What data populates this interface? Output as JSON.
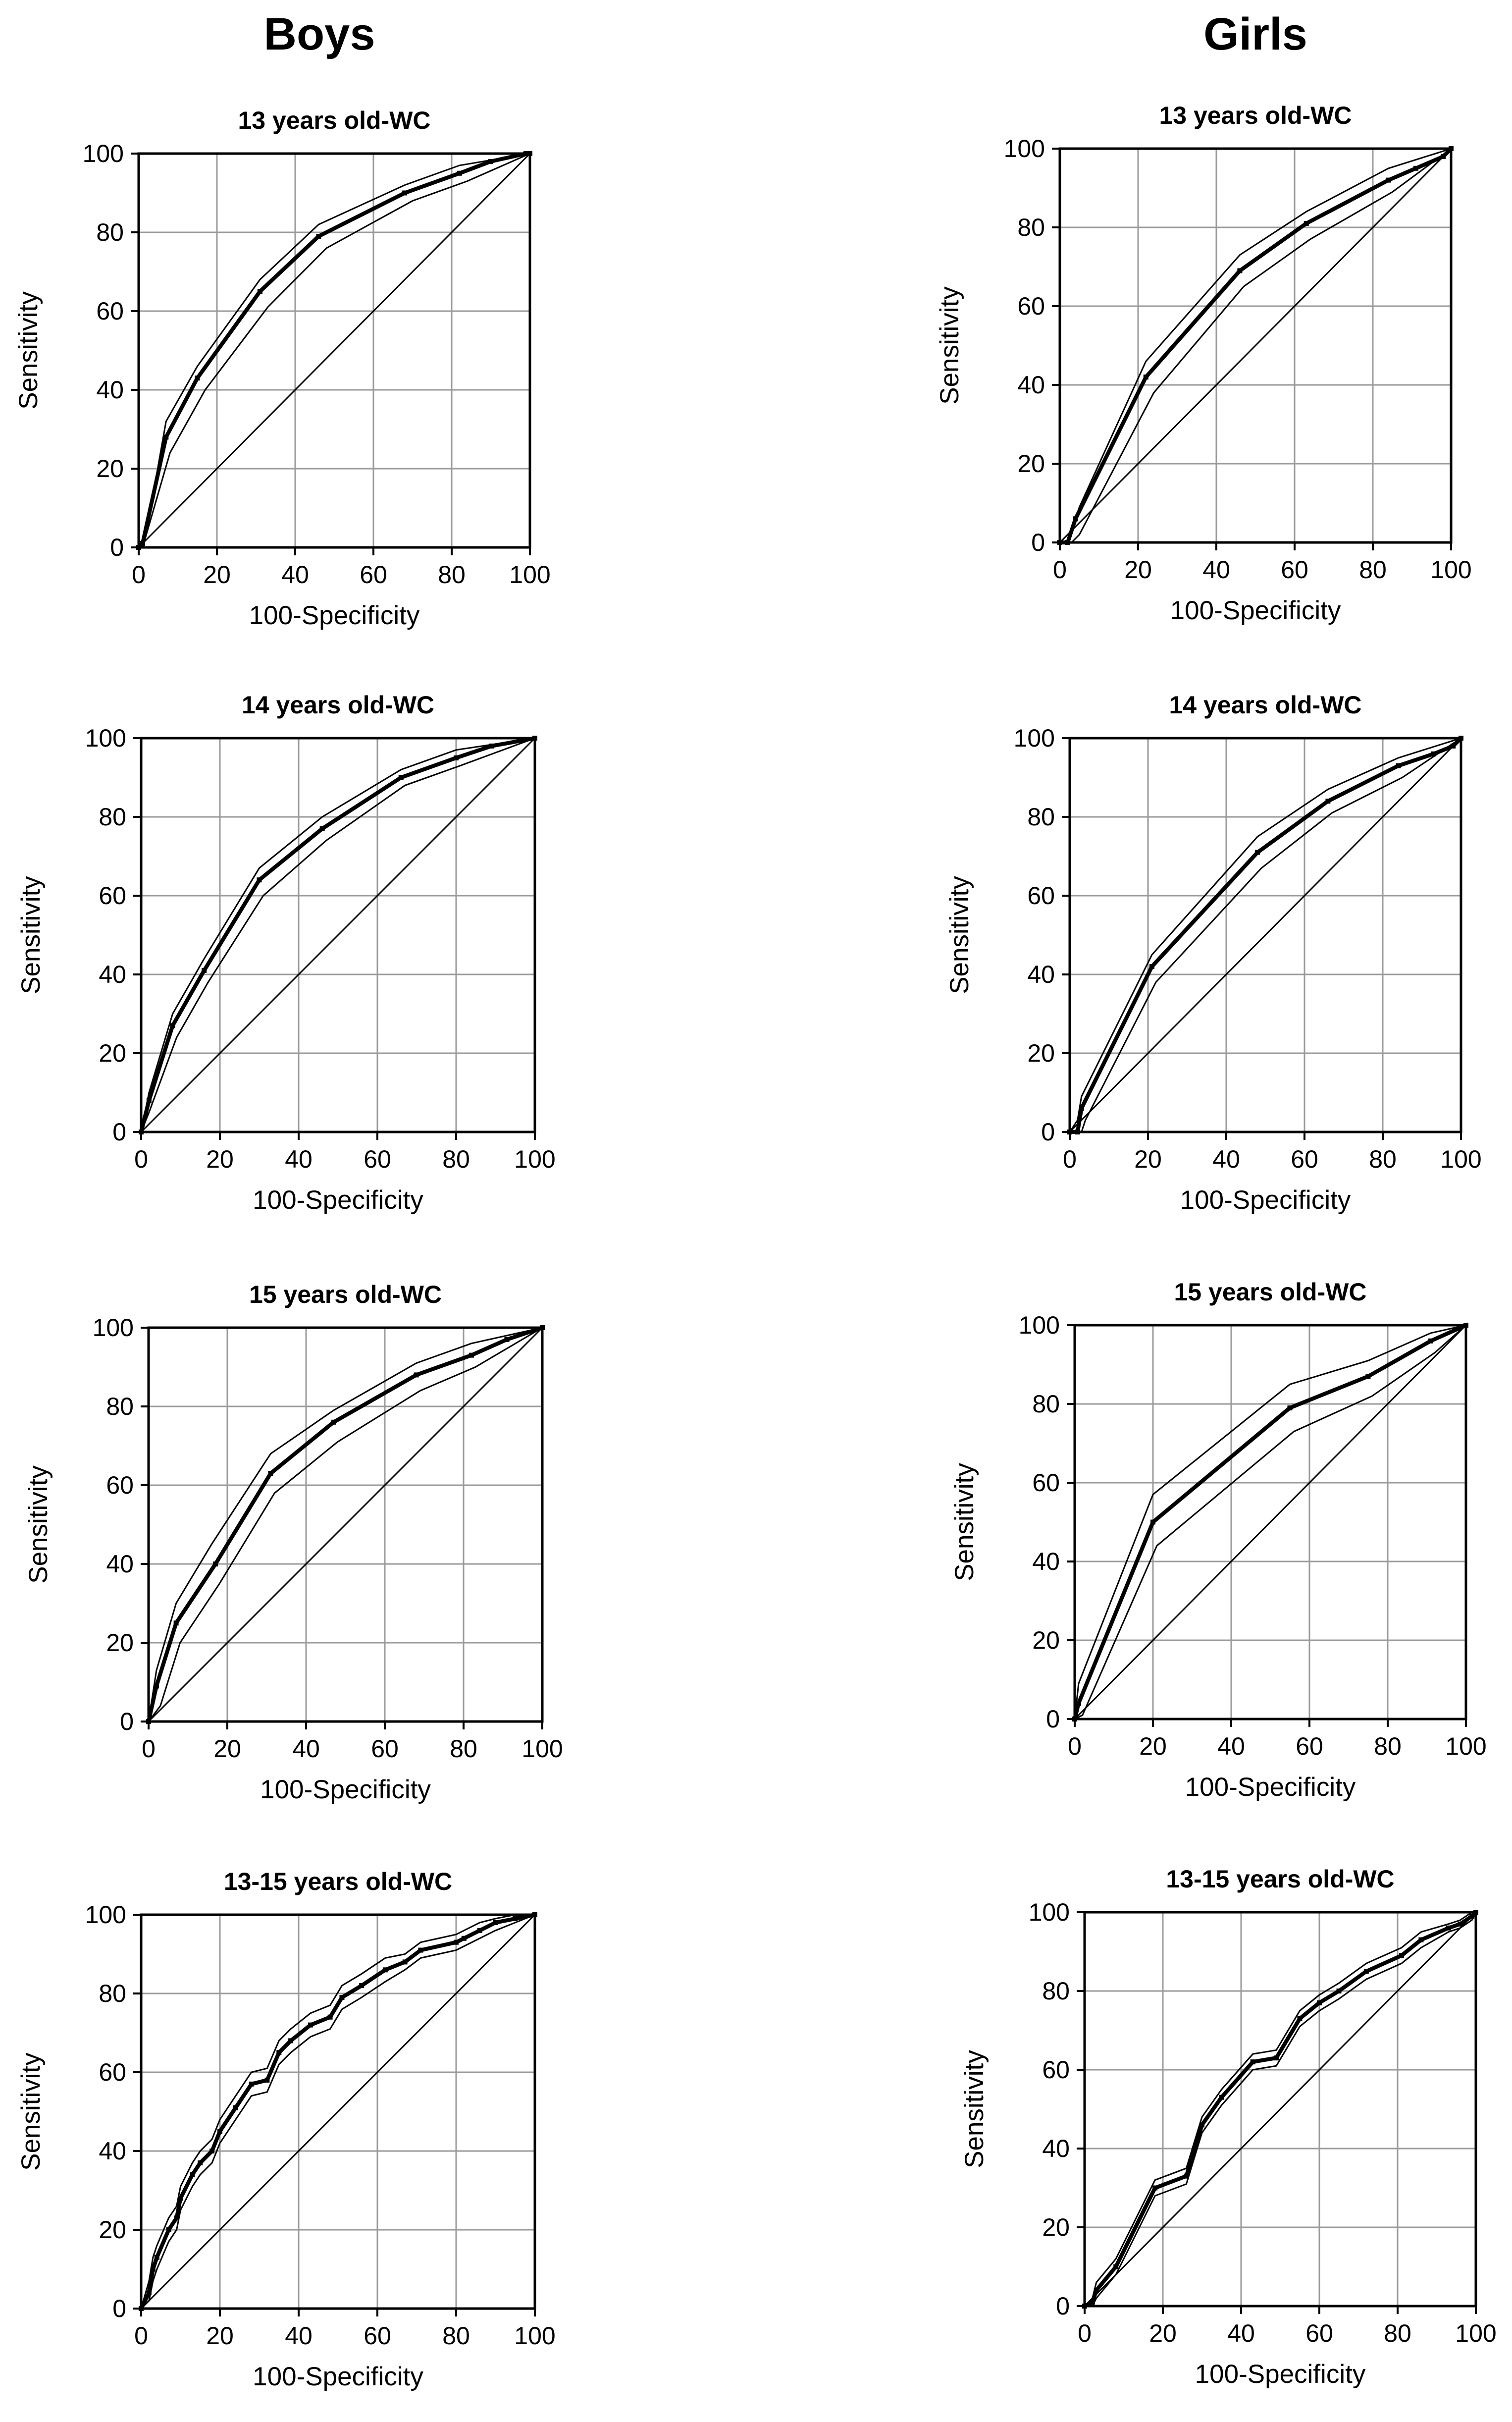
{
  "columns": [
    {
      "title": "Boys"
    },
    {
      "title": "Girls"
    }
  ],
  "axis": {
    "xlabel": "100-Specificity",
    "ylabel": "Sensitivity",
    "ticks": [
      0,
      20,
      40,
      60,
      80,
      100
    ]
  },
  "chart_data": [
    {
      "type": "line",
      "title": "13 years old-WC",
      "group": "Boys",
      "xlabel": "100-Specificity",
      "ylabel": "Sensitivity",
      "xlim": [
        0,
        100
      ],
      "ylim": [
        0,
        100
      ],
      "grid": true,
      "reference_diagonal": true,
      "roc": [
        [
          0,
          0
        ],
        [
          1,
          1
        ],
        [
          7,
          28
        ],
        [
          15,
          43
        ],
        [
          31,
          65
        ],
        [
          46,
          79
        ],
        [
          68,
          90
        ],
        [
          82,
          95
        ],
        [
          90,
          98
        ],
        [
          99,
          100
        ],
        [
          100,
          100
        ]
      ],
      "ci_upper": [
        [
          0,
          0
        ],
        [
          2,
          4
        ],
        [
          7,
          32
        ],
        [
          15,
          46
        ],
        [
          31,
          68
        ],
        [
          46,
          82
        ],
        [
          68,
          92
        ],
        [
          82,
          97
        ],
        [
          100,
          100
        ]
      ],
      "ci_lower": [
        [
          0,
          0
        ],
        [
          1,
          0
        ],
        [
          8,
          24
        ],
        [
          17,
          40
        ],
        [
          33,
          61
        ],
        [
          48,
          76
        ],
        [
          70,
          88
        ],
        [
          84,
          93
        ],
        [
          100,
          100
        ]
      ]
    },
    {
      "type": "line",
      "title": "13 years old-WC",
      "group": "Girls",
      "xlabel": "100-Specificity",
      "ylabel": "Sensitivity",
      "xlim": [
        0,
        100
      ],
      "ylim": [
        0,
        100
      ],
      "grid": true,
      "reference_diagonal": true,
      "roc": [
        [
          0,
          0
        ],
        [
          2,
          0
        ],
        [
          4,
          6
        ],
        [
          22,
          42
        ],
        [
          46,
          69
        ],
        [
          63,
          81
        ],
        [
          84,
          92
        ],
        [
          91,
          95
        ],
        [
          98,
          98
        ],
        [
          100,
          100
        ]
      ],
      "ci_upper": [
        [
          0,
          0
        ],
        [
          3,
          3
        ],
        [
          5,
          9
        ],
        [
          22,
          46
        ],
        [
          46,
          73
        ],
        [
          63,
          84
        ],
        [
          84,
          95
        ],
        [
          100,
          100
        ]
      ],
      "ci_lower": [
        [
          0,
          0
        ],
        [
          3,
          0
        ],
        [
          5,
          2
        ],
        [
          24,
          38
        ],
        [
          47,
          65
        ],
        [
          64,
          77
        ],
        [
          85,
          89
        ],
        [
          100,
          100
        ]
      ]
    },
    {
      "type": "line",
      "title": "14 years old-WC",
      "group": "Boys",
      "xlabel": "100-Specificity",
      "ylabel": "Sensitivity",
      "xlim": [
        0,
        100
      ],
      "ylim": [
        0,
        100
      ],
      "grid": true,
      "reference_diagonal": true,
      "roc": [
        [
          0,
          0
        ],
        [
          2,
          8
        ],
        [
          8,
          27
        ],
        [
          16,
          41
        ],
        [
          30,
          64
        ],
        [
          46,
          77
        ],
        [
          66,
          90
        ],
        [
          80,
          95
        ],
        [
          89,
          98
        ],
        [
          100,
          100
        ]
      ],
      "ci_upper": [
        [
          0,
          0
        ],
        [
          2,
          10
        ],
        [
          8,
          30
        ],
        [
          16,
          44
        ],
        [
          30,
          67
        ],
        [
          46,
          80
        ],
        [
          66,
          92
        ],
        [
          80,
          97
        ],
        [
          100,
          100
        ]
      ],
      "ci_lower": [
        [
          0,
          0
        ],
        [
          2,
          5
        ],
        [
          9,
          24
        ],
        [
          17,
          38
        ],
        [
          31,
          60
        ],
        [
          47,
          74
        ],
        [
          67,
          88
        ],
        [
          81,
          93
        ],
        [
          100,
          100
        ]
      ]
    },
    {
      "type": "line",
      "title": "14 years old-WC",
      "group": "Girls",
      "xlabel": "100-Specificity",
      "ylabel": "Sensitivity",
      "xlim": [
        0,
        100
      ],
      "ylim": [
        0,
        100
      ],
      "grid": true,
      "reference_diagonal": true,
      "roc": [
        [
          0,
          0
        ],
        [
          2,
          0
        ],
        [
          3,
          6
        ],
        [
          21,
          42
        ],
        [
          48,
          71
        ],
        [
          66,
          84
        ],
        [
          84,
          93
        ],
        [
          93,
          96
        ],
        [
          98,
          98
        ],
        [
          100,
          100
        ]
      ],
      "ci_upper": [
        [
          0,
          0
        ],
        [
          2,
          3
        ],
        [
          3,
          9
        ],
        [
          21,
          45
        ],
        [
          48,
          75
        ],
        [
          66,
          87
        ],
        [
          84,
          95
        ],
        [
          100,
          100
        ]
      ],
      "ci_lower": [
        [
          0,
          0
        ],
        [
          3,
          0
        ],
        [
          4,
          3
        ],
        [
          22,
          38
        ],
        [
          49,
          67
        ],
        [
          67,
          81
        ],
        [
          85,
          90
        ],
        [
          100,
          100
        ]
      ]
    },
    {
      "type": "line",
      "title": "15 years old-WC",
      "group": "Boys",
      "xlabel": "100-Specificity",
      "ylabel": "Sensitivity",
      "xlim": [
        0,
        100
      ],
      "ylim": [
        0,
        100
      ],
      "grid": true,
      "reference_diagonal": true,
      "roc": [
        [
          0,
          0
        ],
        [
          2,
          9
        ],
        [
          7,
          25
        ],
        [
          17,
          40
        ],
        [
          31,
          63
        ],
        [
          47,
          76
        ],
        [
          68,
          88
        ],
        [
          82,
          93
        ],
        [
          91,
          97
        ],
        [
          100,
          100
        ]
      ],
      "ci_upper": [
        [
          0,
          0
        ],
        [
          2,
          13
        ],
        [
          7,
          30
        ],
        [
          16,
          45
        ],
        [
          31,
          68
        ],
        [
          47,
          79
        ],
        [
          68,
          91
        ],
        [
          82,
          96
        ],
        [
          100,
          100
        ]
      ],
      "ci_lower": [
        [
          0,
          0
        ],
        [
          3,
          4
        ],
        [
          8,
          20
        ],
        [
          18,
          35
        ],
        [
          32,
          58
        ],
        [
          48,
          71
        ],
        [
          69,
          84
        ],
        [
          83,
          90
        ],
        [
          100,
          100
        ]
      ]
    },
    {
      "type": "line",
      "title": "15 years old-WC",
      "group": "Girls",
      "xlabel": "100-Specificity",
      "ylabel": "Sensitivity",
      "xlim": [
        0,
        100
      ],
      "ylim": [
        0,
        100
      ],
      "grid": true,
      "reference_diagonal": true,
      "roc": [
        [
          0,
          0
        ],
        [
          1,
          4
        ],
        [
          20,
          50
        ],
        [
          55,
          79
        ],
        [
          75,
          87
        ],
        [
          91,
          96
        ],
        [
          100,
          100
        ]
      ],
      "ci_upper": [
        [
          0,
          0
        ],
        [
          1,
          9
        ],
        [
          20,
          57
        ],
        [
          55,
          85
        ],
        [
          75,
          91
        ],
        [
          91,
          98
        ],
        [
          100,
          100
        ]
      ],
      "ci_lower": [
        [
          0,
          0
        ],
        [
          2,
          1
        ],
        [
          21,
          44
        ],
        [
          56,
          73
        ],
        [
          76,
          82
        ],
        [
          92,
          93
        ],
        [
          100,
          100
        ]
      ]
    },
    {
      "type": "line",
      "title": "13-15 years old-WC",
      "group": "Boys",
      "xlabel": "100-Specificity",
      "ylabel": "Sensitivity",
      "xlim": [
        0,
        100
      ],
      "ylim": [
        0,
        100
      ],
      "grid": true,
      "reference_diagonal": true,
      "roc": [
        [
          0,
          0
        ],
        [
          2,
          4
        ],
        [
          3,
          10
        ],
        [
          4,
          13
        ],
        [
          7,
          20
        ],
        [
          9,
          23
        ],
        [
          10,
          28
        ],
        [
          13,
          34
        ],
        [
          15,
          37
        ],
        [
          18,
          40
        ],
        [
          20,
          45
        ],
        [
          24,
          51
        ],
        [
          28,
          57
        ],
        [
          32,
          58
        ],
        [
          35,
          65
        ],
        [
          38,
          68
        ],
        [
          43,
          72
        ],
        [
          48,
          74
        ],
        [
          51,
          79
        ],
        [
          56,
          82
        ],
        [
          62,
          86
        ],
        [
          67,
          88
        ],
        [
          71,
          91
        ],
        [
          80,
          93
        ],
        [
          82,
          94
        ],
        [
          86,
          96
        ],
        [
          90,
          98
        ],
        [
          95,
          99
        ],
        [
          100,
          100
        ]
      ],
      "ci_upper": [
        [
          0,
          0
        ],
        [
          2,
          7
        ],
        [
          3,
          13
        ],
        [
          4,
          16
        ],
        [
          7,
          23
        ],
        [
          9,
          26
        ],
        [
          10,
          31
        ],
        [
          13,
          37
        ],
        [
          15,
          40
        ],
        [
          18,
          43
        ],
        [
          20,
          48
        ],
        [
          24,
          54
        ],
        [
          28,
          60
        ],
        [
          32,
          61
        ],
        [
          35,
          68
        ],
        [
          38,
          71
        ],
        [
          43,
          75
        ],
        [
          48,
          77
        ],
        [
          51,
          82
        ],
        [
          56,
          85
        ],
        [
          62,
          89
        ],
        [
          67,
          90
        ],
        [
          71,
          93
        ],
        [
          80,
          95
        ],
        [
          82,
          96
        ],
        [
          86,
          98
        ],
        [
          90,
          99
        ],
        [
          95,
          100
        ],
        [
          100,
          100
        ]
      ],
      "ci_lower": [
        [
          0,
          0
        ],
        [
          2,
          2
        ],
        [
          3,
          7
        ],
        [
          4,
          10
        ],
        [
          7,
          17
        ],
        [
          9,
          20
        ],
        [
          10,
          25
        ],
        [
          13,
          31
        ],
        [
          15,
          34
        ],
        [
          18,
          37
        ],
        [
          20,
          42
        ],
        [
          24,
          48
        ],
        [
          28,
          54
        ],
        [
          32,
          55
        ],
        [
          35,
          62
        ],
        [
          38,
          65
        ],
        [
          43,
          69
        ],
        [
          48,
          71
        ],
        [
          51,
          76
        ],
        [
          56,
          79
        ],
        [
          62,
          83
        ],
        [
          67,
          86
        ],
        [
          71,
          89
        ],
        [
          80,
          91
        ],
        [
          82,
          92
        ],
        [
          86,
          94
        ],
        [
          90,
          96
        ],
        [
          95,
          98
        ],
        [
          100,
          100
        ]
      ]
    },
    {
      "type": "line",
      "title": "13-15 years old-WC",
      "group": "Girls",
      "xlabel": "100-Specificity",
      "ylabel": "Sensitivity",
      "xlim": [
        0,
        100
      ],
      "ylim": [
        0,
        100
      ],
      "grid": true,
      "reference_diagonal": true,
      "roc": [
        [
          0,
          0
        ],
        [
          2,
          1
        ],
        [
          3,
          4
        ],
        [
          8,
          10
        ],
        [
          18,
          30
        ],
        [
          26,
          33
        ],
        [
          30,
          46
        ],
        [
          35,
          53
        ],
        [
          43,
          62
        ],
        [
          49,
          63
        ],
        [
          55,
          73
        ],
        [
          60,
          77
        ],
        [
          65,
          80
        ],
        [
          72,
          85
        ],
        [
          81,
          89
        ],
        [
          86,
          93
        ],
        [
          93,
          96
        ],
        [
          96,
          97
        ],
        [
          99,
          99
        ],
        [
          100,
          100
        ]
      ],
      "ci_upper": [
        [
          0,
          0
        ],
        [
          2,
          2
        ],
        [
          3,
          6
        ],
        [
          8,
          12
        ],
        [
          18,
          32
        ],
        [
          26,
          35
        ],
        [
          30,
          48
        ],
        [
          35,
          55
        ],
        [
          43,
          64
        ],
        [
          49,
          65
        ],
        [
          55,
          75
        ],
        [
          60,
          79
        ],
        [
          65,
          82
        ],
        [
          72,
          87
        ],
        [
          81,
          91
        ],
        [
          86,
          95
        ],
        [
          93,
          97
        ],
        [
          96,
          98
        ],
        [
          99,
          100
        ],
        [
          100,
          100
        ]
      ],
      "ci_lower": [
        [
          0,
          0
        ],
        [
          2,
          0
        ],
        [
          3,
          2
        ],
        [
          8,
          8
        ],
        [
          18,
          28
        ],
        [
          26,
          31
        ],
        [
          30,
          44
        ],
        [
          35,
          51
        ],
        [
          43,
          60
        ],
        [
          49,
          61
        ],
        [
          55,
          71
        ],
        [
          60,
          75
        ],
        [
          65,
          78
        ],
        [
          72,
          83
        ],
        [
          81,
          87
        ],
        [
          86,
          91
        ],
        [
          93,
          95
        ],
        [
          96,
          96
        ],
        [
          99,
          98
        ],
        [
          100,
          100
        ]
      ]
    }
  ]
}
